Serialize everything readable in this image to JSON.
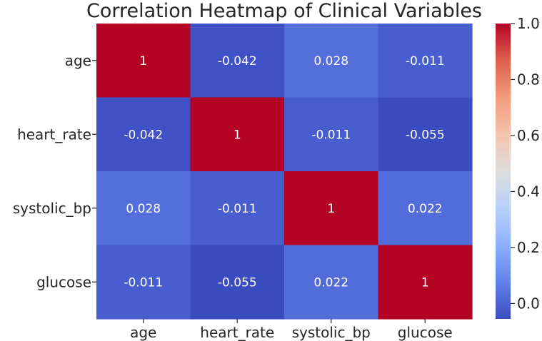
{
  "chart_data": {
    "type": "heatmap",
    "title": "Correlation Heatmap of Clinical Variables",
    "xlabel": "",
    "ylabel": "",
    "row_labels": [
      "age",
      "heart_rate",
      "systolic_bp",
      "glucose"
    ],
    "col_labels": [
      "age",
      "heart_rate",
      "systolic_bp",
      "glucose"
    ],
    "values": [
      [
        1,
        -0.042,
        0.028,
        -0.011
      ],
      [
        -0.042,
        1,
        -0.011,
        -0.055
      ],
      [
        0.028,
        -0.011,
        1,
        0.022
      ],
      [
        -0.011,
        -0.055,
        0.022,
        1
      ]
    ],
    "cell_labels": [
      [
        "1",
        "-0.042",
        "0.028",
        "-0.011"
      ],
      [
        "-0.042",
        "1",
        "-0.011",
        "-0.055"
      ],
      [
        "0.028",
        "-0.011",
        "1",
        "0.022"
      ],
      [
        "-0.011",
        "-0.055",
        "0.022",
        "1"
      ]
    ],
    "colormap": "coolwarm",
    "color_range": [
      -0.055,
      1
    ],
    "colorbar_ticks": [
      0.0,
      0.2,
      0.4,
      0.6,
      0.8,
      1.0
    ],
    "colorbar_tick_labels": [
      "0.0",
      "0.2",
      "0.4",
      "0.6",
      "0.8",
      "1.0"
    ],
    "colorbar_position": "right"
  }
}
